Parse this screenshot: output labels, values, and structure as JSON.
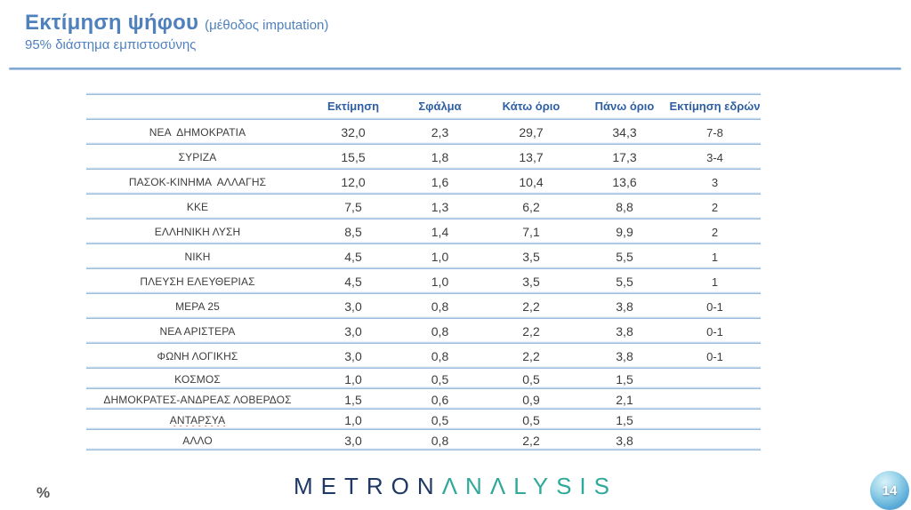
{
  "slide": {
    "title": "Εκτίμηση ψήφου ",
    "title_suffix": "(μέθοδος imputation)",
    "subtitle": "95% διάστημα εμπιστοσύνης"
  },
  "table": {
    "columns": [
      "",
      "Εκτίμηση",
      "Σφάλμα",
      "Κάτω όριο",
      "Πάνω όριο",
      "Εκτίμηση εδρών"
    ],
    "rows": [
      {
        "party": "ΝΕΑ  ΔΗΜΟΚΡΑΤΙΑ",
        "estimate": "32,0",
        "error": "2,3",
        "lower": "29,7",
        "upper": "34,3",
        "seats": "7-8",
        "misspelled": false
      },
      {
        "party": "ΣΥΡΙΖΑ",
        "estimate": "15,5",
        "error": "1,8",
        "lower": "13,7",
        "upper": "17,3",
        "seats": "3-4",
        "misspelled": false
      },
      {
        "party": "ΠΑΣΟΚ-ΚΙΝΗΜΑ  ΑΛΛΑΓΗΣ",
        "estimate": "12,0",
        "error": "1,6",
        "lower": "10,4",
        "upper": "13,6",
        "seats": "3",
        "misspelled": false
      },
      {
        "party": "ΚΚΕ",
        "estimate": "7,5",
        "error": "1,3",
        "lower": "6,2",
        "upper": "8,8",
        "seats": "2",
        "misspelled": false
      },
      {
        "party": "ΕΛΛΗΝΙΚΗ ΛΥΣΗ",
        "estimate": "8,5",
        "error": "1,4",
        "lower": "7,1",
        "upper": "9,9",
        "seats": "2",
        "misspelled": false
      },
      {
        "party": "ΝΙΚΗ",
        "estimate": "4,5",
        "error": "1,0",
        "lower": "3,5",
        "upper": "5,5",
        "seats": "1",
        "misspelled": false
      },
      {
        "party": "ΠΛΕΥΣΗ ΕΛΕΥΘΕΡΙΑΣ",
        "estimate": "4,5",
        "error": "1,0",
        "lower": "3,5",
        "upper": "5,5",
        "seats": "1",
        "misspelled": false
      },
      {
        "party": "ΜΕΡΑ 25",
        "estimate": "3,0",
        "error": "0,8",
        "lower": "2,2",
        "upper": "3,8",
        "seats": "0-1",
        "misspelled": false
      },
      {
        "party": "ΝΕΑ ΑΡΙΣΤΕΡΑ",
        "estimate": "3,0",
        "error": "0,8",
        "lower": "2,2",
        "upper": "3,8",
        "seats": "0-1",
        "misspelled": false
      },
      {
        "party": "ΦΩΝΗ ΛΟΓΙΚΗΣ",
        "estimate": "3,0",
        "error": "0,8",
        "lower": "2,2",
        "upper": "3,8",
        "seats": "0-1",
        "misspelled": false
      },
      {
        "party": "ΚΟΣΜΟΣ",
        "estimate": "1,0",
        "error": "0,5",
        "lower": "0,5",
        "upper": "1,5",
        "seats": "",
        "misspelled": false
      },
      {
        "party": "ΔΗΜΟΚΡΑΤΕΣ-ΑΝΔΡΕΑΣ ΛΟΒΕΡΔΟΣ",
        "estimate": "1,5",
        "error": "0,6",
        "lower": "0,9",
        "upper": "2,1",
        "seats": "",
        "misspelled": false
      },
      {
        "party": "ΑΝΤΑΡΣΥΑ",
        "estimate": "1,0",
        "error": "0,5",
        "lower": "0,5",
        "upper": "1,5",
        "seats": "",
        "misspelled": true
      },
      {
        "party": "ΑΛΛΟ",
        "estimate": "3,0",
        "error": "0,8",
        "lower": "2,2",
        "upper": "3,8",
        "seats": "",
        "misspelled": false
      }
    ]
  },
  "footer": {
    "percent_label": "%",
    "logo_part1": "METRON",
    "logo_part2": "ΛNΛLYSIS",
    "page_number": "14"
  },
  "colors": {
    "title_blue": "#4f81bd",
    "header_blue": "#2e5fa3",
    "body_text": "#3d3d3d",
    "separator_blue": "#9bbddd",
    "logo_navy": "#1f3864",
    "logo_teal": "#2fa99a",
    "ball_blue": "#4192c7",
    "spellcheck_red": "#cc4125",
    "percent_gray": "#595959"
  }
}
